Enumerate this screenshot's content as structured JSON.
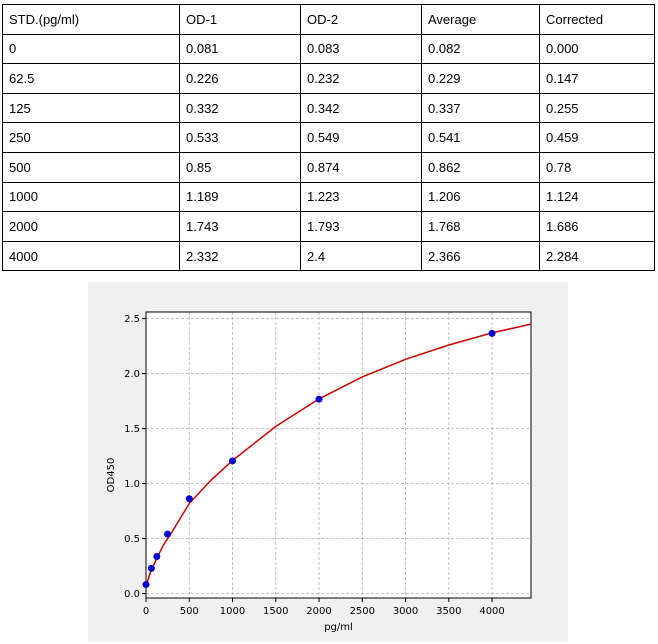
{
  "table": {
    "headers": [
      "STD.(pg/ml)",
      "OD-1",
      "OD-2",
      "Average",
      "Corrected"
    ],
    "rows": [
      [
        "0",
        "0.081",
        "0.083",
        "0.082",
        "0.000"
      ],
      [
        "62.5",
        "0.226",
        "0.232",
        "0.229",
        "0.147"
      ],
      [
        "125",
        "0.332",
        "0.342",
        "0.337",
        "0.255"
      ],
      [
        "250",
        "0.533",
        "0.549",
        "0.541",
        "0.459"
      ],
      [
        "500",
        "0.85",
        "0.874",
        "0.862",
        "0.78"
      ],
      [
        "1000",
        "1.189",
        "1.223",
        "1.206",
        "1.124"
      ],
      [
        "2000",
        "1.743",
        "1.793",
        "1.768",
        "1.686"
      ],
      [
        "4000",
        "2.332",
        "2.4",
        "2.366",
        "2.284"
      ]
    ]
  },
  "chart_data": {
    "type": "scatter",
    "xlabel": "pg/ml",
    "ylabel": "OD450",
    "xlim": [
      0,
      4450
    ],
    "ylim": [
      -0.04,
      2.56
    ],
    "xticks": [
      0,
      500,
      1000,
      1500,
      2000,
      2500,
      3000,
      3500,
      4000
    ],
    "yticks": [
      0.0,
      0.5,
      1.0,
      1.5,
      2.0,
      2.5
    ],
    "grid": true,
    "point_color": "#0000cc",
    "curve_color": "#cc0000",
    "series": [
      {
        "x": [
          0,
          62.5,
          125,
          250,
          500,
          1000,
          2000,
          4000
        ],
        "y": [
          0.082,
          0.229,
          0.337,
          0.541,
          0.862,
          1.206,
          1.768,
          2.366
        ]
      }
    ],
    "fit_curve": {
      "x": [
        0,
        50,
        100,
        200,
        300,
        500,
        750,
        1000,
        1500,
        2000,
        2500,
        3000,
        3500,
        4000,
        4450
      ],
      "y": [
        0.07,
        0.19,
        0.28,
        0.44,
        0.56,
        0.82,
        1.03,
        1.21,
        1.52,
        1.77,
        1.97,
        2.13,
        2.26,
        2.37,
        2.45
      ]
    }
  }
}
